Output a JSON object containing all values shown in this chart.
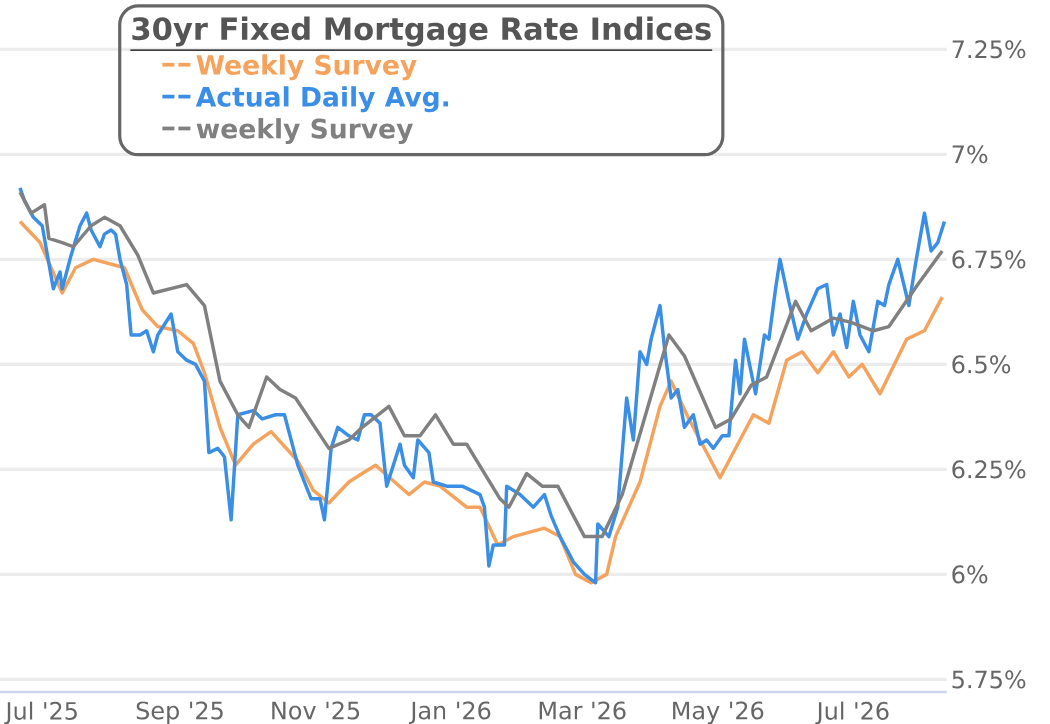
{
  "chart_data": {
    "type": "line",
    "legend_title": "30yr Fixed Mortgage Rate Indices",
    "legend": "top",
    "grid": "y",
    "line_style": "solid",
    "marker": "none",
    "xlim": [
      "2025-06-12",
      "2026-08-12"
    ],
    "ylim": [
      5.72,
      7.25
    ],
    "xticks": [
      {
        "value": "2025-07-01",
        "label": "Jul '25"
      },
      {
        "value": "2025-09-01",
        "label": "Sep '25"
      },
      {
        "value": "2025-11-01",
        "label": "Nov '25"
      },
      {
        "value": "2026-01-01",
        "label": "Jan '26"
      },
      {
        "value": "2026-03-01",
        "label": "Mar '26"
      },
      {
        "value": "2026-05-01",
        "label": "May '26"
      },
      {
        "value": "2026-07-01",
        "label": "Jul '26"
      }
    ],
    "yticks": [
      {
        "value": 5.75,
        "label": "5.75%"
      },
      {
        "value": 6,
        "label": "6%"
      },
      {
        "value": 6.25,
        "label": "6.25%"
      },
      {
        "value": 6.5,
        "label": "6.5%"
      },
      {
        "value": 6.75,
        "label": "6.75%"
      },
      {
        "value": 7,
        "label": "7%"
      },
      {
        "value": 7.25,
        "label": "7.25%"
      }
    ],
    "series": [
      {
        "name": "Weekly Survey",
        "color": "#f5a35c",
        "x": [
          "2025-06-21",
          "2025-06-30",
          "2025-07-10",
          "2025-07-16",
          "2025-07-24",
          "2025-08-07",
          "2025-08-15",
          "2025-08-22",
          "2025-08-31",
          "2025-09-07",
          "2025-09-12",
          "2025-09-19",
          "2025-09-26",
          "2025-10-04",
          "2025-10-12",
          "2025-10-24",
          "2025-10-31",
          "2025-11-07",
          "2025-11-16",
          "2025-11-22",
          "2025-11-28",
          "2025-12-13",
          "2025-12-20",
          "2025-12-27",
          "2026-01-08",
          "2026-01-14",
          "2026-01-22",
          "2026-01-29",
          "2026-02-12",
          "2026-02-19",
          "2026-02-26",
          "2026-03-05",
          "2026-03-12",
          "2026-03-16",
          "2026-03-27",
          "2026-04-05",
          "2026-04-10",
          "2026-04-18",
          "2026-05-02",
          "2026-05-17",
          "2026-05-24",
          "2026-06-01",
          "2026-06-08",
          "2026-06-15",
          "2026-06-22",
          "2026-06-29",
          "2026-07-05",
          "2026-07-13",
          "2026-07-25",
          "2026-08-02",
          "2026-08-10"
        ],
        "values": [
          6.84,
          6.79,
          6.67,
          6.73,
          6.75,
          6.73,
          6.63,
          6.59,
          6.58,
          6.55,
          6.48,
          6.35,
          6.26,
          6.31,
          6.34,
          6.27,
          6.2,
          6.17,
          6.22,
          6.24,
          6.26,
          6.19,
          6.22,
          6.21,
          6.16,
          6.16,
          6.07,
          6.09,
          6.11,
          6.09,
          6.0,
          5.98,
          6.0,
          6.09,
          6.22,
          6.4,
          6.46,
          6.37,
          6.23,
          6.38,
          6.36,
          6.51,
          6.53,
          6.48,
          6.53,
          6.47,
          6.5,
          6.43,
          6.56,
          6.58,
          6.66
        ]
      },
      {
        "name": "Actual Daily Avg.",
        "color": "#3a8ee6",
        "x": [
          "2025-06-21",
          "2025-06-23",
          "2025-06-27",
          "2025-07-01",
          "2025-07-04",
          "2025-07-06",
          "2025-07-09",
          "2025-07-10",
          "2025-07-14",
          "2025-07-18",
          "2025-07-21",
          "2025-07-23",
          "2025-07-27",
          "2025-07-29",
          "2025-08-01",
          "2025-08-03",
          "2025-08-05",
          "2025-08-08",
          "2025-08-10",
          "2025-08-14",
          "2025-08-17",
          "2025-08-20",
          "2025-08-22",
          "2025-08-28",
          "2025-08-31",
          "2025-09-04",
          "2025-09-08",
          "2025-09-12",
          "2025-09-14",
          "2025-09-18",
          "2025-09-21",
          "2025-09-24",
          "2025-09-27",
          "2025-10-04",
          "2025-10-08",
          "2025-10-14",
          "2025-10-18",
          "2025-10-24",
          "2025-10-30",
          "2025-11-03",
          "2025-11-05",
          "2025-11-08",
          "2025-11-11",
          "2025-11-16",
          "2025-11-20",
          "2025-11-23",
          "2025-11-26",
          "2025-11-30",
          "2025-12-03",
          "2025-12-06",
          "2025-12-09",
          "2025-12-11",
          "2025-12-15",
          "2025-12-17",
          "2025-12-22",
          "2025-12-24",
          "2025-12-30",
          "2026-01-06",
          "2026-01-14",
          "2026-01-16",
          "2026-01-18",
          "2026-01-20",
          "2026-01-25",
          "2026-01-26",
          "2026-02-01",
          "2026-02-07",
          "2026-02-12",
          "2026-02-15",
          "2026-02-19",
          "2026-02-25",
          "2026-03-02",
          "2026-03-07",
          "2026-03-08",
          "2026-03-13",
          "2026-03-17",
          "2026-03-21",
          "2026-03-24",
          "2026-03-27",
          "2026-03-30",
          "2026-04-01",
          "2026-04-05",
          "2026-04-07",
          "2026-04-10",
          "2026-04-13",
          "2026-04-16",
          "2026-04-20",
          "2026-04-23",
          "2026-04-26",
          "2026-04-29",
          "2026-05-03",
          "2026-05-06",
          "2026-05-09",
          "2026-05-11",
          "2026-05-13",
          "2026-05-18",
          "2026-05-22",
          "2026-05-24",
          "2026-05-27",
          "2026-05-29",
          "2026-06-02",
          "2026-06-06",
          "2026-06-10",
          "2026-06-15",
          "2026-06-19",
          "2026-06-22",
          "2026-06-25",
          "2026-06-28",
          "2026-07-01",
          "2026-07-04",
          "2026-07-08",
          "2026-07-12",
          "2026-07-15",
          "2026-07-17",
          "2026-07-21",
          "2026-07-26",
          "2026-07-29",
          "2026-08-02",
          "2026-08-05",
          "2026-08-08",
          "2026-08-11"
        ],
        "values": [
          6.92,
          6.89,
          6.85,
          6.83,
          6.74,
          6.68,
          6.72,
          6.68,
          6.76,
          6.83,
          6.86,
          6.82,
          6.78,
          6.81,
          6.82,
          6.81,
          6.75,
          6.69,
          6.57,
          6.57,
          6.58,
          6.53,
          6.57,
          6.62,
          6.53,
          6.51,
          6.5,
          6.46,
          6.29,
          6.3,
          6.28,
          6.13,
          6.38,
          6.39,
          6.37,
          6.38,
          6.38,
          6.26,
          6.18,
          6.18,
          6.13,
          6.3,
          6.35,
          6.33,
          6.32,
          6.38,
          6.38,
          6.36,
          6.21,
          6.26,
          6.31,
          6.26,
          6.23,
          6.32,
          6.29,
          6.22,
          6.21,
          6.21,
          6.19,
          6.16,
          6.02,
          6.07,
          6.07,
          6.21,
          6.19,
          6.16,
          6.19,
          6.14,
          6.09,
          6.03,
          6.0,
          5.98,
          6.12,
          6.09,
          6.16,
          6.42,
          6.32,
          6.53,
          6.5,
          6.56,
          6.64,
          6.54,
          6.42,
          6.44,
          6.35,
          6.38,
          6.31,
          6.32,
          6.3,
          6.33,
          6.33,
          6.51,
          6.43,
          6.56,
          6.43,
          6.57,
          6.56,
          6.68,
          6.75,
          6.65,
          6.56,
          6.62,
          6.68,
          6.69,
          6.57,
          6.62,
          6.54,
          6.65,
          6.57,
          6.53,
          6.65,
          6.64,
          6.69,
          6.75,
          6.64,
          6.74,
          6.86,
          6.77,
          6.79,
          6.84
        ]
      },
      {
        "name": "weekly Survey",
        "color": "#808080",
        "x": [
          "2025-06-21",
          "2025-06-26",
          "2025-07-02",
          "2025-07-04",
          "2025-07-10",
          "2025-07-15",
          "2025-07-23",
          "2025-07-29",
          "2025-08-05",
          "2025-08-13",
          "2025-08-20",
          "2025-09-04",
          "2025-09-12",
          "2025-09-19",
          "2025-09-27",
          "2025-10-02",
          "2025-10-10",
          "2025-10-16",
          "2025-10-23",
          "2025-11-07",
          "2025-11-16",
          "2025-11-22",
          "2025-12-04",
          "2025-12-11",
          "2025-12-18",
          "2025-12-25",
          "2026-01-02",
          "2026-01-08",
          "2026-01-23",
          "2026-01-27",
          "2026-02-04",
          "2026-02-11",
          "2026-02-18",
          "2026-03-02",
          "2026-03-10",
          "2026-03-19",
          "2026-04-09",
          "2026-04-16",
          "2026-04-30",
          "2026-05-07",
          "2026-05-16",
          "2026-05-23",
          "2026-06-05",
          "2026-06-12",
          "2026-06-22",
          "2026-06-30",
          "2026-07-10",
          "2026-07-17",
          "2026-07-30",
          "2026-08-10"
        ],
        "values": [
          6.91,
          6.86,
          6.88,
          6.8,
          6.79,
          6.78,
          6.83,
          6.85,
          6.83,
          6.76,
          6.67,
          6.69,
          6.64,
          6.46,
          6.38,
          6.35,
          6.47,
          6.44,
          6.42,
          6.3,
          6.32,
          6.35,
          6.4,
          6.33,
          6.33,
          6.38,
          6.31,
          6.31,
          6.18,
          6.16,
          6.24,
          6.21,
          6.21,
          6.09,
          6.09,
          6.19,
          6.57,
          6.52,
          6.35,
          6.37,
          6.45,
          6.47,
          6.65,
          6.58,
          6.61,
          6.6,
          6.58,
          6.59,
          6.69,
          6.77
        ]
      }
    ]
  }
}
